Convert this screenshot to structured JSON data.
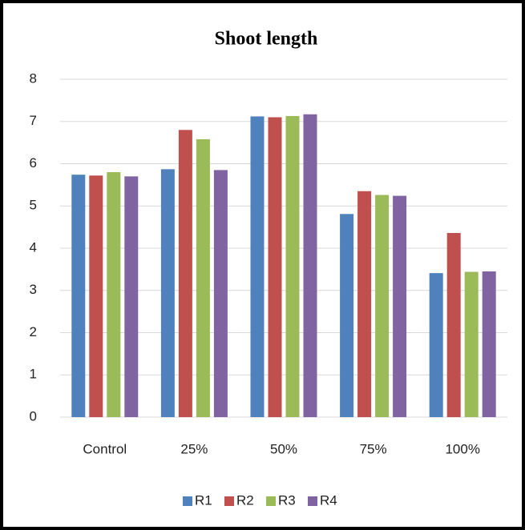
{
  "chart_data": {
    "type": "bar",
    "title": "Shoot length",
    "categories": [
      "Control",
      "25%",
      "50%",
      "75%",
      "100%"
    ],
    "series": [
      {
        "name": "R1",
        "color": "#4f81bd",
        "values": [
          5.74,
          5.87,
          7.12,
          4.81,
          3.41
        ]
      },
      {
        "name": "R2",
        "color": "#c0504d",
        "values": [
          5.72,
          6.8,
          7.1,
          5.35,
          4.36
        ]
      },
      {
        "name": "R3",
        "color": "#9bbb59",
        "values": [
          5.8,
          6.58,
          7.13,
          5.26,
          3.44
        ]
      },
      {
        "name": "R4",
        "color": "#8064a2",
        "values": [
          5.7,
          5.85,
          7.17,
          5.24,
          3.45
        ]
      }
    ],
    "ylim": [
      0,
      8
    ],
    "yticks": [
      0,
      1,
      2,
      3,
      4,
      5,
      6,
      7,
      8
    ],
    "grid": true,
    "legend": "bottom"
  }
}
